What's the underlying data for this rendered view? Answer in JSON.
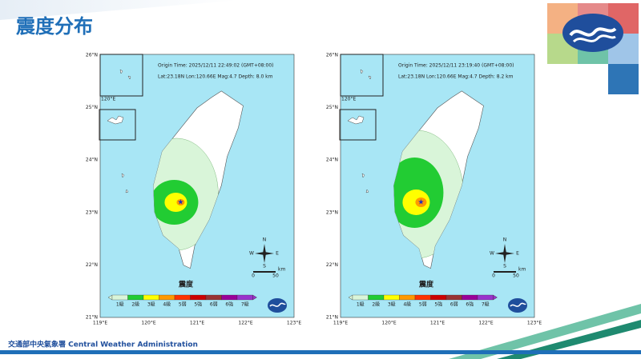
{
  "header": {
    "title": "震度分布"
  },
  "footer": {
    "text": "交通部中央氣象署 Central Weather Administration"
  },
  "maps": [
    {
      "origin_time": "Origin Time: 2025/12/11  22:49:02  (GMT+08:00)",
      "location": "Lat:23.18N  Lon:120.66E  Mag:4.7  Depth:  8.0  km"
    },
    {
      "origin_time": "Origin Time: 2025/12/11  23:19:40  (GMT+08:00)",
      "location": "Lat:23.18N  Lon:120.66E  Mag:4.7  Depth:  8.2  km"
    }
  ],
  "lat_labels": [
    "26°N",
    "25°N",
    "24°N",
    "23°N",
    "22°N",
    "21°N"
  ],
  "lon_labels": [
    "119°E",
    "120°E",
    "121°E",
    "122°E",
    "123°E"
  ],
  "inset_label": "120°E",
  "legend": {
    "title": "震度",
    "levels": [
      {
        "label": "1級",
        "color": "#d9f5d9"
      },
      {
        "label": "2級",
        "color": "#22cc33"
      },
      {
        "label": "3級",
        "color": "#ffff00"
      },
      {
        "label": "4級",
        "color": "#ff9900"
      },
      {
        "label": "5弱",
        "color": "#ff3300"
      },
      {
        "label": "5強",
        "color": "#cc0000"
      },
      {
        "label": "6弱",
        "color": "#993333"
      },
      {
        "label": "6強",
        "color": "#990099"
      },
      {
        "label": "7級",
        "color": "#9933cc"
      }
    ]
  },
  "compass": {
    "n": "N",
    "e": "E",
    "s": "S",
    "w": "W"
  },
  "scale": {
    "start": "0",
    "end": "50",
    "unit": "km"
  }
}
